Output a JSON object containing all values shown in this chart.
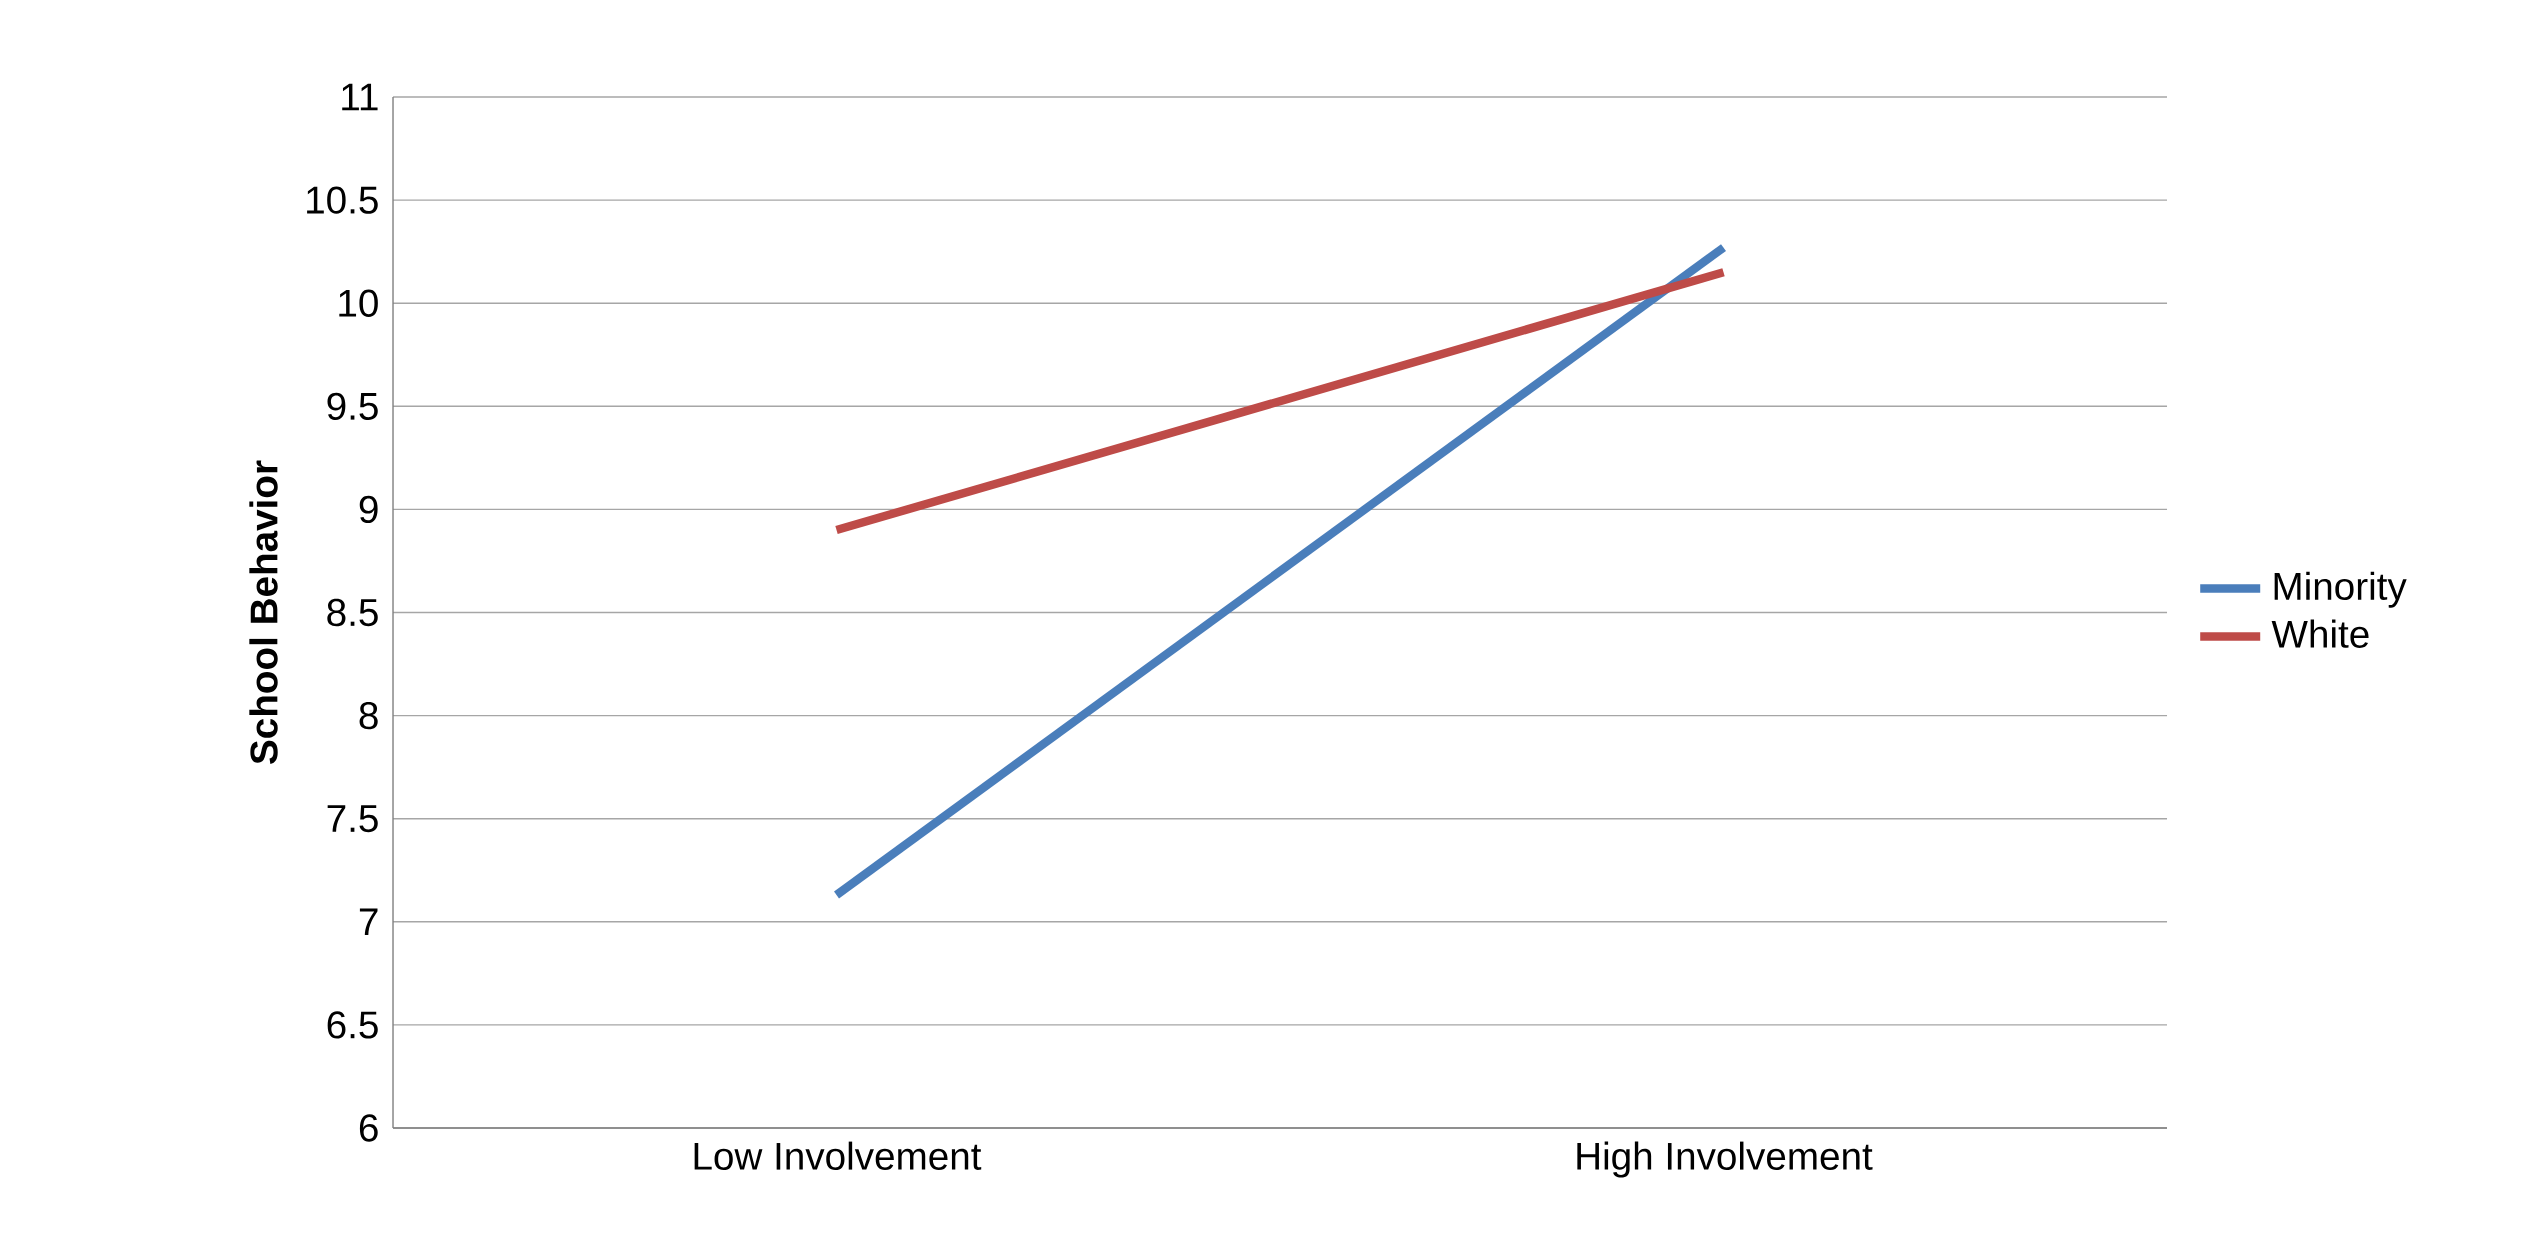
{
  "chart_data": {
    "type": "line",
    "ylabel": "School Behavior",
    "categories": [
      "Low Involvement",
      "High Involvement"
    ],
    "series": [
      {
        "name": "Minority",
        "color": "#4a7ebb",
        "values": [
          7.13,
          10.27
        ]
      },
      {
        "name": "White",
        "color": "#be4b48",
        "values": [
          8.9,
          10.15
        ]
      }
    ],
    "ylim": [
      6,
      11
    ],
    "yticks": [
      6,
      6.5,
      7,
      7.5,
      8,
      8.5,
      9,
      9.5,
      10,
      10.5,
      11
    ],
    "grid": "y",
    "legend": "right",
    "marker": "none",
    "line_style": "solid"
  }
}
